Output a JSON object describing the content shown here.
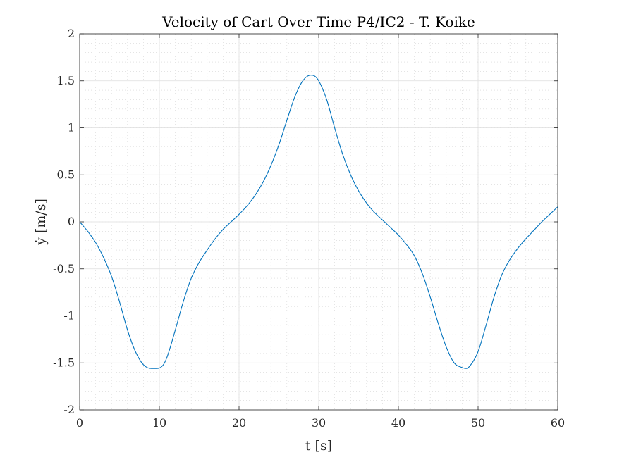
{
  "chart_data": {
    "type": "line",
    "title": "Velocity of Cart Over Time P4/IC2 - T. Koike",
    "xlabel": "t [s]",
    "ylabel": "ẏ [m/s]",
    "xlim": [
      0,
      60
    ],
    "ylim": [
      -2,
      2
    ],
    "xticks": [
      0,
      10,
      20,
      30,
      40,
      50,
      60
    ],
    "xtick_labels": [
      "0",
      "10",
      "20",
      "30",
      "40",
      "50",
      "60"
    ],
    "yticks": [
      2,
      1.5,
      1,
      0.5,
      0,
      -0.5,
      -1,
      -1.5,
      -2
    ],
    "ytick_labels": [
      "2",
      "1.5",
      "1",
      "0.5",
      "0",
      "-0.5",
      "-1",
      "-1.5",
      "-2"
    ],
    "grid": true,
    "minor_grid": true,
    "line_color": "#0072BD",
    "series": [
      {
        "x": [
          0,
          1,
          2,
          3,
          4,
          5,
          6,
          7,
          8,
          9,
          9.7,
          10.5,
          11,
          12,
          13,
          14,
          15,
          16,
          17,
          18,
          19,
          20,
          21,
          22,
          23,
          24,
          25,
          26,
          27,
          28,
          29,
          29.5,
          30,
          31,
          32,
          33,
          34,
          35,
          36,
          37,
          38,
          39,
          40,
          41,
          42,
          43,
          44,
          45,
          46,
          47,
          48,
          48.5,
          49,
          50,
          51,
          52,
          53,
          54,
          55,
          56,
          57,
          58,
          59,
          60
        ],
        "y": [
          0,
          -0.1,
          -0.22,
          -0.38,
          -0.58,
          -0.85,
          -1.15,
          -1.38,
          -1.52,
          -1.56,
          -1.56,
          -1.52,
          -1.43,
          -1.15,
          -0.85,
          -0.6,
          -0.43,
          -0.3,
          -0.18,
          -0.08,
          0,
          0.08,
          0.17,
          0.28,
          0.42,
          0.6,
          0.82,
          1.08,
          1.33,
          1.5,
          1.56,
          1.55,
          1.5,
          1.3,
          1.0,
          0.72,
          0.5,
          0.33,
          0.2,
          0.1,
          0.02,
          -0.06,
          -0.14,
          -0.24,
          -0.36,
          -0.55,
          -0.8,
          -1.08,
          -1.33,
          -1.5,
          -1.55,
          -1.56,
          -1.53,
          -1.38,
          -1.1,
          -0.8,
          -0.56,
          -0.4,
          -0.28,
          -0.18,
          -0.09,
          0,
          0.08,
          0.16
        ]
      }
    ]
  }
}
